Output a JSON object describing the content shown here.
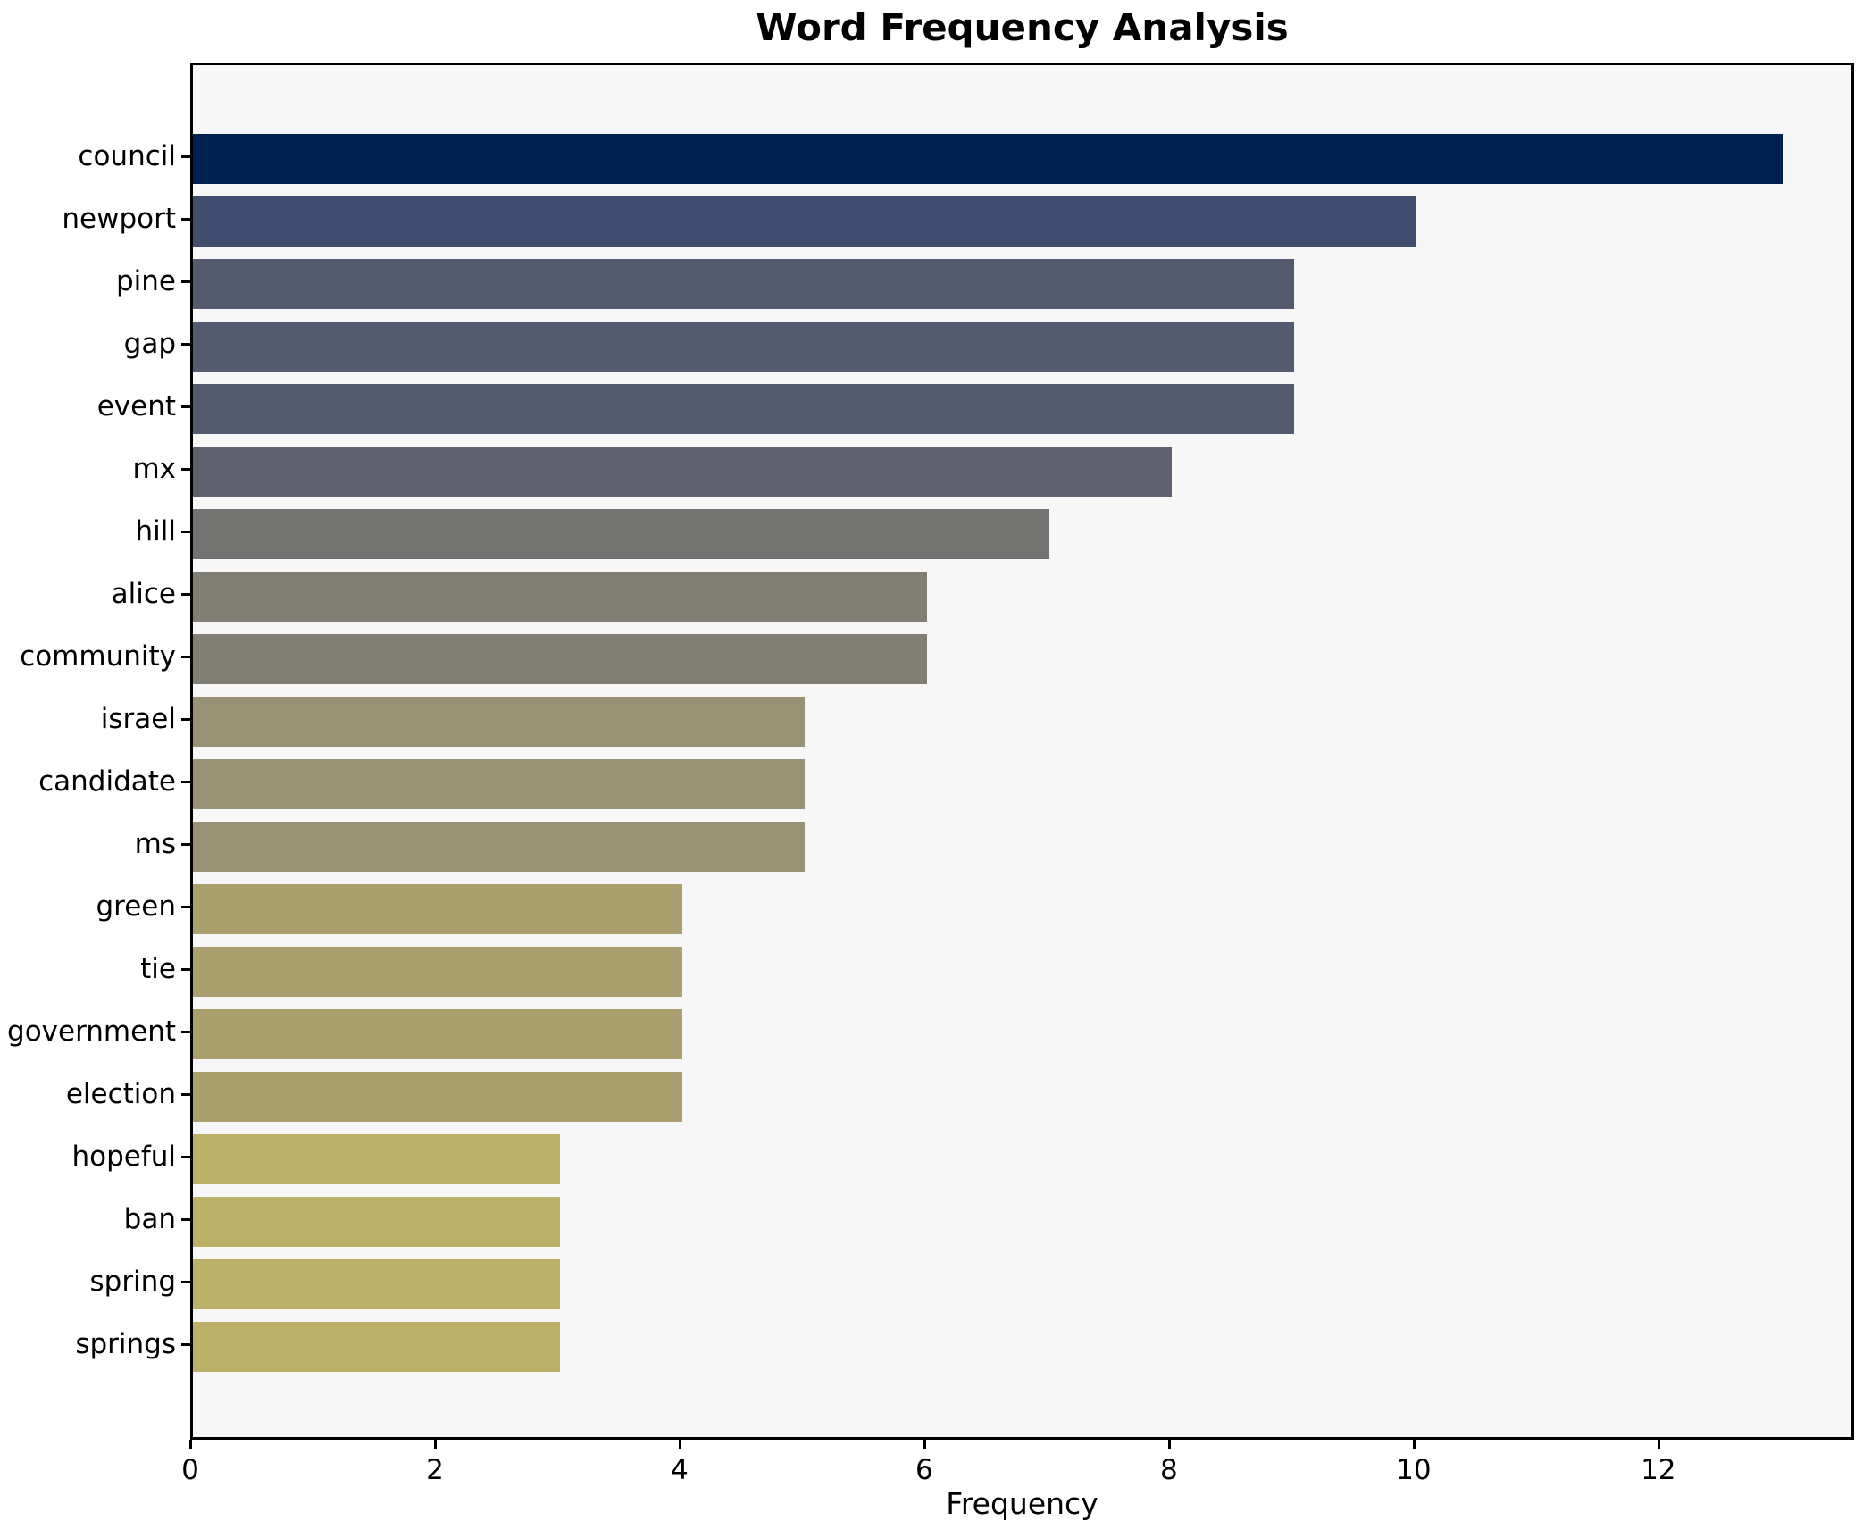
{
  "chart_data": {
    "type": "bar",
    "orientation": "horizontal",
    "title": "Word Frequency Analysis",
    "xlabel": "Frequency",
    "ylabel": "",
    "categories": [
      "council",
      "newport",
      "pine",
      "gap",
      "event",
      "mx",
      "hill",
      "alice",
      "community",
      "israel",
      "candidate",
      "ms",
      "green",
      "tie",
      "government",
      "election",
      "hopeful",
      "ban",
      "spring",
      "springs"
    ],
    "values": [
      13,
      10,
      9,
      9,
      9,
      8,
      7,
      6,
      6,
      5,
      5,
      5,
      4,
      4,
      4,
      4,
      3,
      3,
      3,
      3
    ],
    "bar_colors": [
      "#002150",
      "#414d6e",
      "#545b70",
      "#545b70",
      "#545b70",
      "#5f616e",
      "#727270",
      "#817f73",
      "#817f73",
      "#989174",
      "#989174",
      "#989174",
      "#aba06d",
      "#aba06d",
      "#aba06d",
      "#aba06d",
      "#bdb169",
      "#bdb169",
      "#bdb169",
      "#bdb169"
    ],
    "xticks": [
      0,
      2,
      4,
      6,
      8,
      10,
      12
    ],
    "xlim": [
      0,
      13.6
    ],
    "grid": false,
    "legend": null,
    "plot_background": "#f7f7f8",
    "figure_background": "#ffffff",
    "spine_color": "#000000",
    "text_color": "#000000"
  }
}
